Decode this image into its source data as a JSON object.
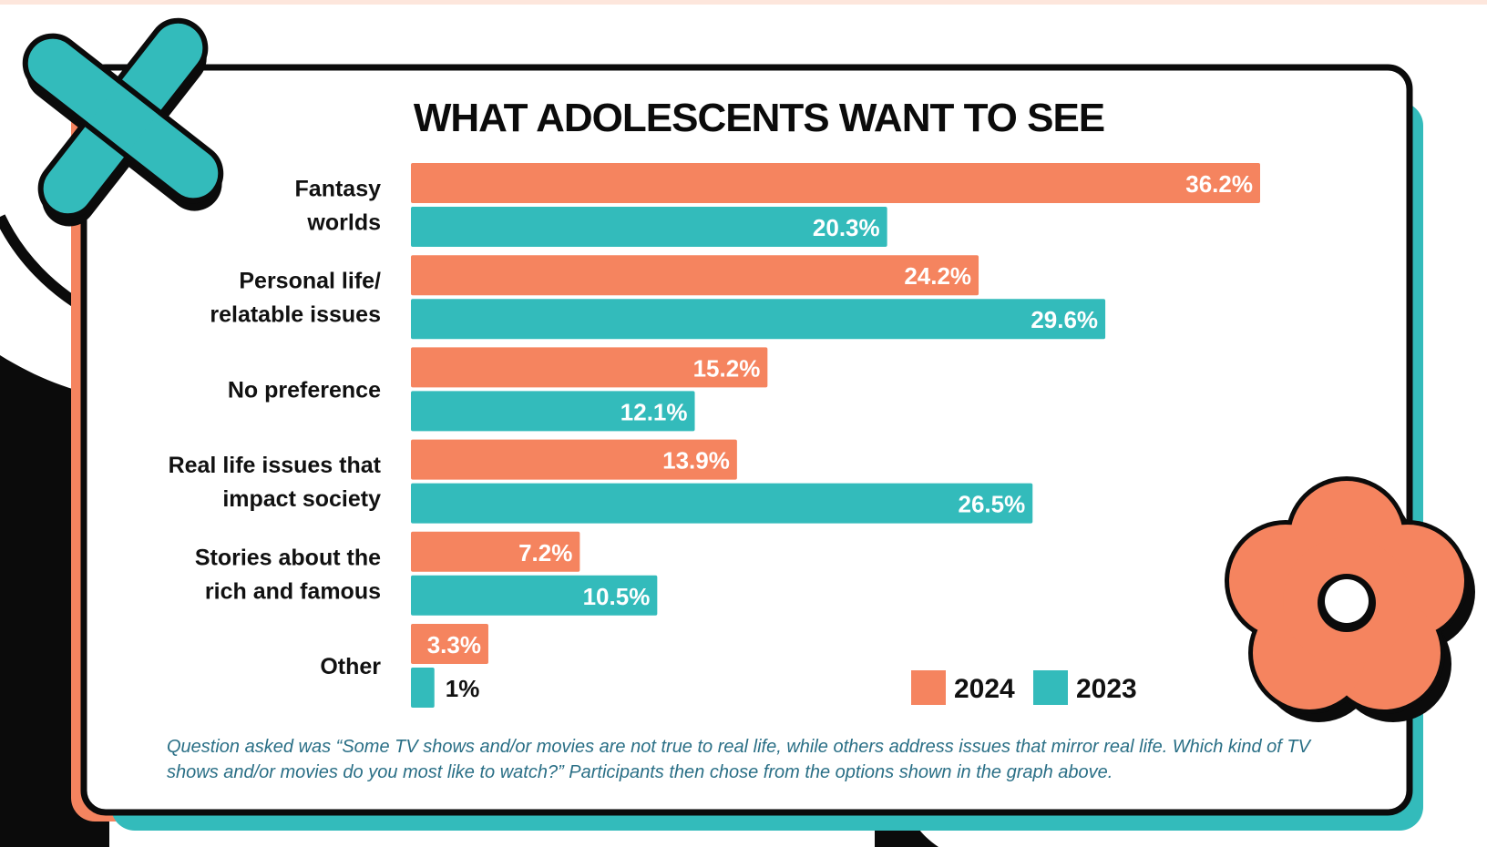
{
  "colors": {
    "series_2024": "#f5845f",
    "series_2023": "#33bbbb",
    "frame": "#111111",
    "footnote": "#2a6f86"
  },
  "decorations": [
    "x-cross-icon",
    "flower-icon"
  ],
  "chart_data": {
    "type": "bar",
    "orientation": "horizontal",
    "title": "WHAT ADOLESCENTS WANT TO SEE",
    "categories": [
      [
        "Fantasy",
        "worlds"
      ],
      [
        "Personal life/",
        "relatable issues"
      ],
      [
        "No preference"
      ],
      [
        "Real life issues that",
        "impact society"
      ],
      [
        "Stories about the",
        "rich and famous"
      ],
      [
        "Other"
      ]
    ],
    "series": [
      {
        "name": "2024",
        "values": [
          36.2,
          24.2,
          15.2,
          13.9,
          7.2,
          3.3
        ],
        "labels": [
          "36.2%",
          "24.2%",
          "15.2%",
          "13.9%",
          "7.2%",
          "3.3%"
        ]
      },
      {
        "name": "2023",
        "values": [
          20.3,
          29.6,
          12.1,
          26.5,
          10.5,
          1
        ],
        "labels": [
          "20.3%",
          "29.6%",
          "12.1%",
          "26.5%",
          "10.5%",
          "1%"
        ]
      }
    ],
    "xlim": [
      0,
      36.2
    ],
    "grid": false,
    "legend_position": "bottom-right"
  },
  "footnote": "Question asked was “Some TV shows and/or movies are not true to real life, while others address issues that mirror real life. Which kind of TV shows and/or movies do you most like to watch?” Participants then chose from the options shown in the graph above."
}
